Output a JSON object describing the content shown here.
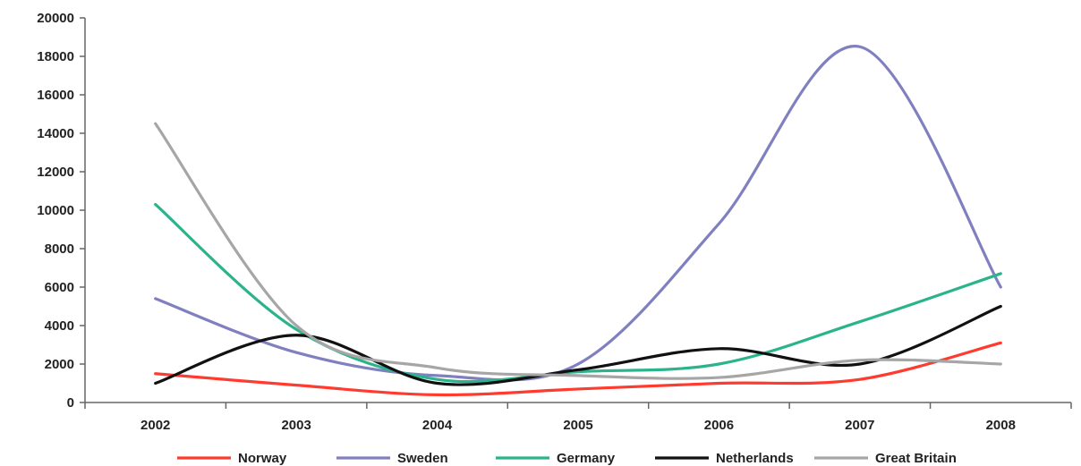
{
  "chart_data": {
    "type": "line",
    "categories": [
      "2002",
      "2003",
      "2004",
      "2005",
      "2006",
      "2007",
      "2008"
    ],
    "ylim": [
      0,
      20000
    ],
    "yticks": [
      0,
      2000,
      4000,
      6000,
      8000,
      10000,
      12000,
      14000,
      16000,
      18000,
      20000
    ],
    "ytick_labels": [
      "0",
      "2000",
      "4000",
      "6000",
      "8000",
      "10000",
      "12000",
      "14000",
      "16000",
      "18000",
      "20000"
    ],
    "grid": false,
    "legend_position": "bottom",
    "smooth": true,
    "series": [
      {
        "name": "Norway",
        "color": "#ff3b2f",
        "values": [
          1500,
          900,
          400,
          700,
          1000,
          1200,
          3100
        ]
      },
      {
        "name": "Sweden",
        "color": "#8080c0",
        "values": [
          5400,
          2600,
          1400,
          2000,
          9300,
          18500,
          6000
        ]
      },
      {
        "name": "Germany",
        "color": "#2bb38c",
        "values": [
          10300,
          3800,
          1200,
          1600,
          2000,
          4200,
          6700
        ]
      },
      {
        "name": "Netherlands",
        "color": "#111111",
        "values": [
          1000,
          3500,
          1000,
          1700,
          2800,
          2000,
          5000
        ]
      },
      {
        "name": "Great Britain",
        "color": "#a6a6a6",
        "values": [
          14500,
          4000,
          1800,
          1400,
          1300,
          2200,
          2000
        ]
      }
    ]
  }
}
